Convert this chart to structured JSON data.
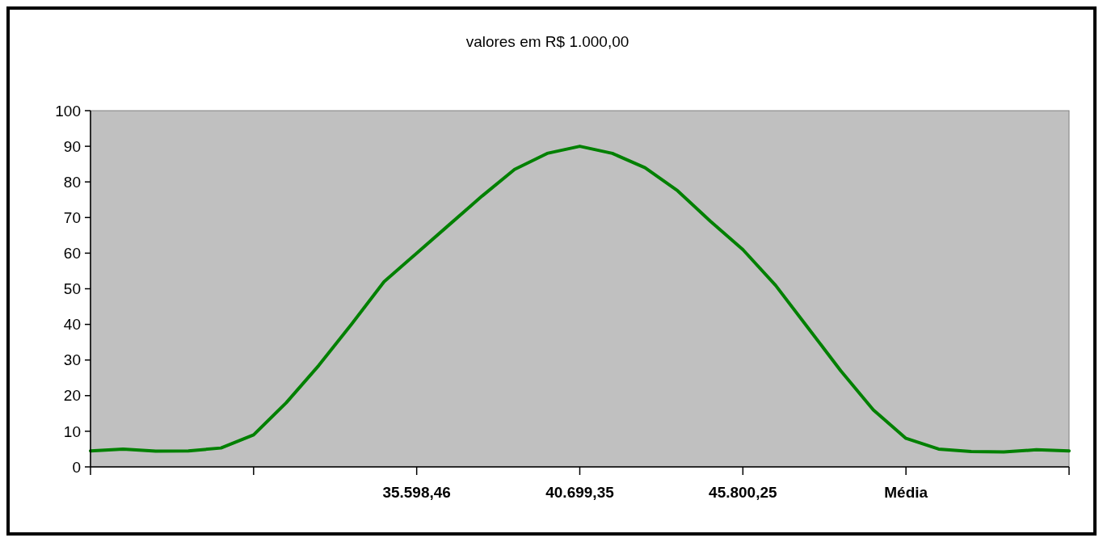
{
  "chart_data": {
    "type": "line",
    "title": "valores em R$ 1.000,00",
    "categories": [
      null,
      null,
      null,
      null,
      null,
      null,
      null,
      null,
      null,
      null,
      "35.598,46",
      null,
      null,
      null,
      null,
      "40.699,35",
      null,
      null,
      null,
      null,
      "45.800,25",
      null,
      null,
      null,
      null,
      "Média",
      null,
      null,
      null,
      null,
      null
    ],
    "series": [
      {
        "color": "#008000",
        "values": [
          4.5,
          5,
          4.4,
          4.5,
          5.3,
          9,
          18,
          28.5,
          40,
          52,
          60,
          68,
          76,
          83.5,
          88,
          90,
          88,
          84,
          77.5,
          69,
          61,
          51,
          39,
          27,
          16,
          8,
          5,
          4.3,
          4.2,
          4.8,
          4.5
        ]
      }
    ],
    "ylim": [
      0,
      100
    ],
    "yticks": [
      0,
      10,
      20,
      30,
      40,
      50,
      60,
      70,
      80,
      90,
      100
    ],
    "grid": false,
    "legend": false,
    "marker": "none",
    "line_style": "solid"
  }
}
